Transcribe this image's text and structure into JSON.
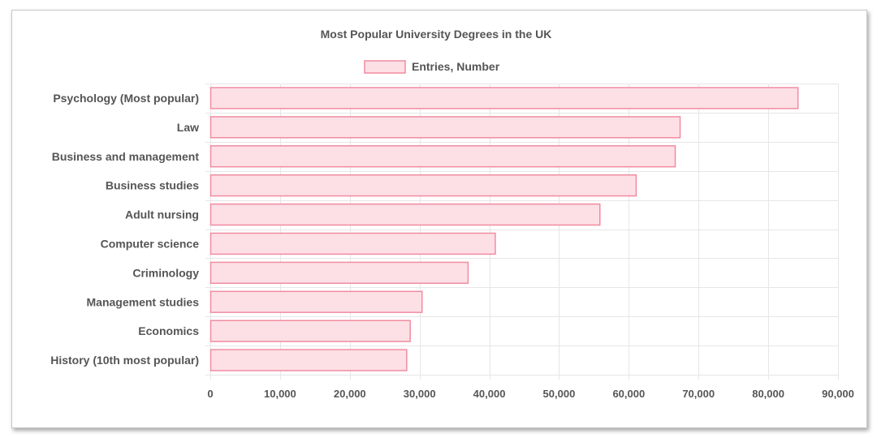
{
  "chart_data": {
    "type": "bar",
    "orientation": "horizontal",
    "title": "Most Popular University Degrees in the UK",
    "legend_position": "top",
    "grid": true,
    "categories": [
      "Psychology (Most popular)",
      "Law",
      "Business and management",
      "Business studies",
      "Adult nursing",
      "Computer science",
      "Criminology",
      "Management studies",
      "Economics",
      "History (10th most popular)"
    ],
    "series": [
      {
        "name": "Entries, Number",
        "values": [
          84200,
          67300,
          66600,
          61000,
          55800,
          40800,
          36900,
          30300,
          28600,
          28100
        ]
      }
    ],
    "xlim": [
      0,
      90000
    ],
    "xticks": [
      0,
      10000,
      20000,
      30000,
      40000,
      50000,
      60000,
      70000,
      80000,
      90000
    ],
    "xtick_labels": [
      "0",
      "10,000",
      "20,000",
      "30,000",
      "40,000",
      "50,000",
      "60,000",
      "70,000",
      "80,000",
      "90,000"
    ],
    "bar_fill": "#fde0e6",
    "bar_stroke": "#f08ca0",
    "grid_color": "#e6e6e6",
    "text_color": "#555555"
  }
}
